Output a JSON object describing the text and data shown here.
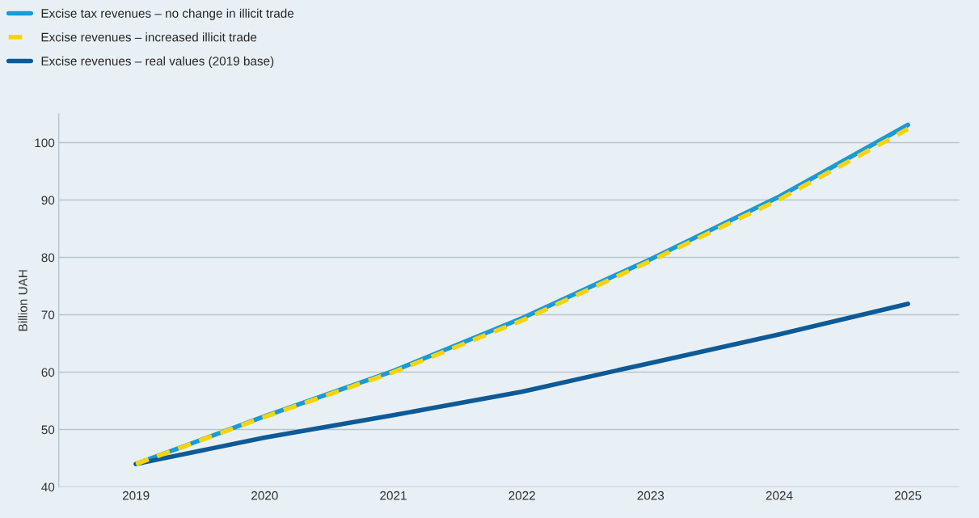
{
  "chart_data": {
    "type": "line",
    "ylabel": "Billion UAH",
    "categories": [
      "2019",
      "2020",
      "2021",
      "2022",
      "2023",
      "2024",
      "2025"
    ],
    "series": [
      {
        "name": "Excise tax revenues – no change in illicit trade",
        "color": "#1a9ad6",
        "line_style": "solid",
        "values": [
          44.0,
          52.3,
          60.2,
          69.4,
          79.7,
          90.6,
          103.1
        ]
      },
      {
        "name": "Excise revenues – increased illicit trade",
        "color": "#f5d40f",
        "line_style": "dashed",
        "values": [
          44.0,
          52.2,
          60.0,
          69.0,
          79.4,
          90.1,
          102.4
        ]
      },
      {
        "name": "Excise revenues – real values (2019 base)",
        "color": "#0e5a96",
        "line_style": "solid",
        "values": [
          44.0,
          48.6,
          52.5,
          56.6,
          61.6,
          66.6,
          71.9
        ]
      }
    ],
    "ylim": [
      40,
      105
    ],
    "yticks": [
      40,
      50,
      60,
      70,
      80,
      90,
      100
    ],
    "grid": "y",
    "legend": "top left",
    "marker": "none"
  }
}
